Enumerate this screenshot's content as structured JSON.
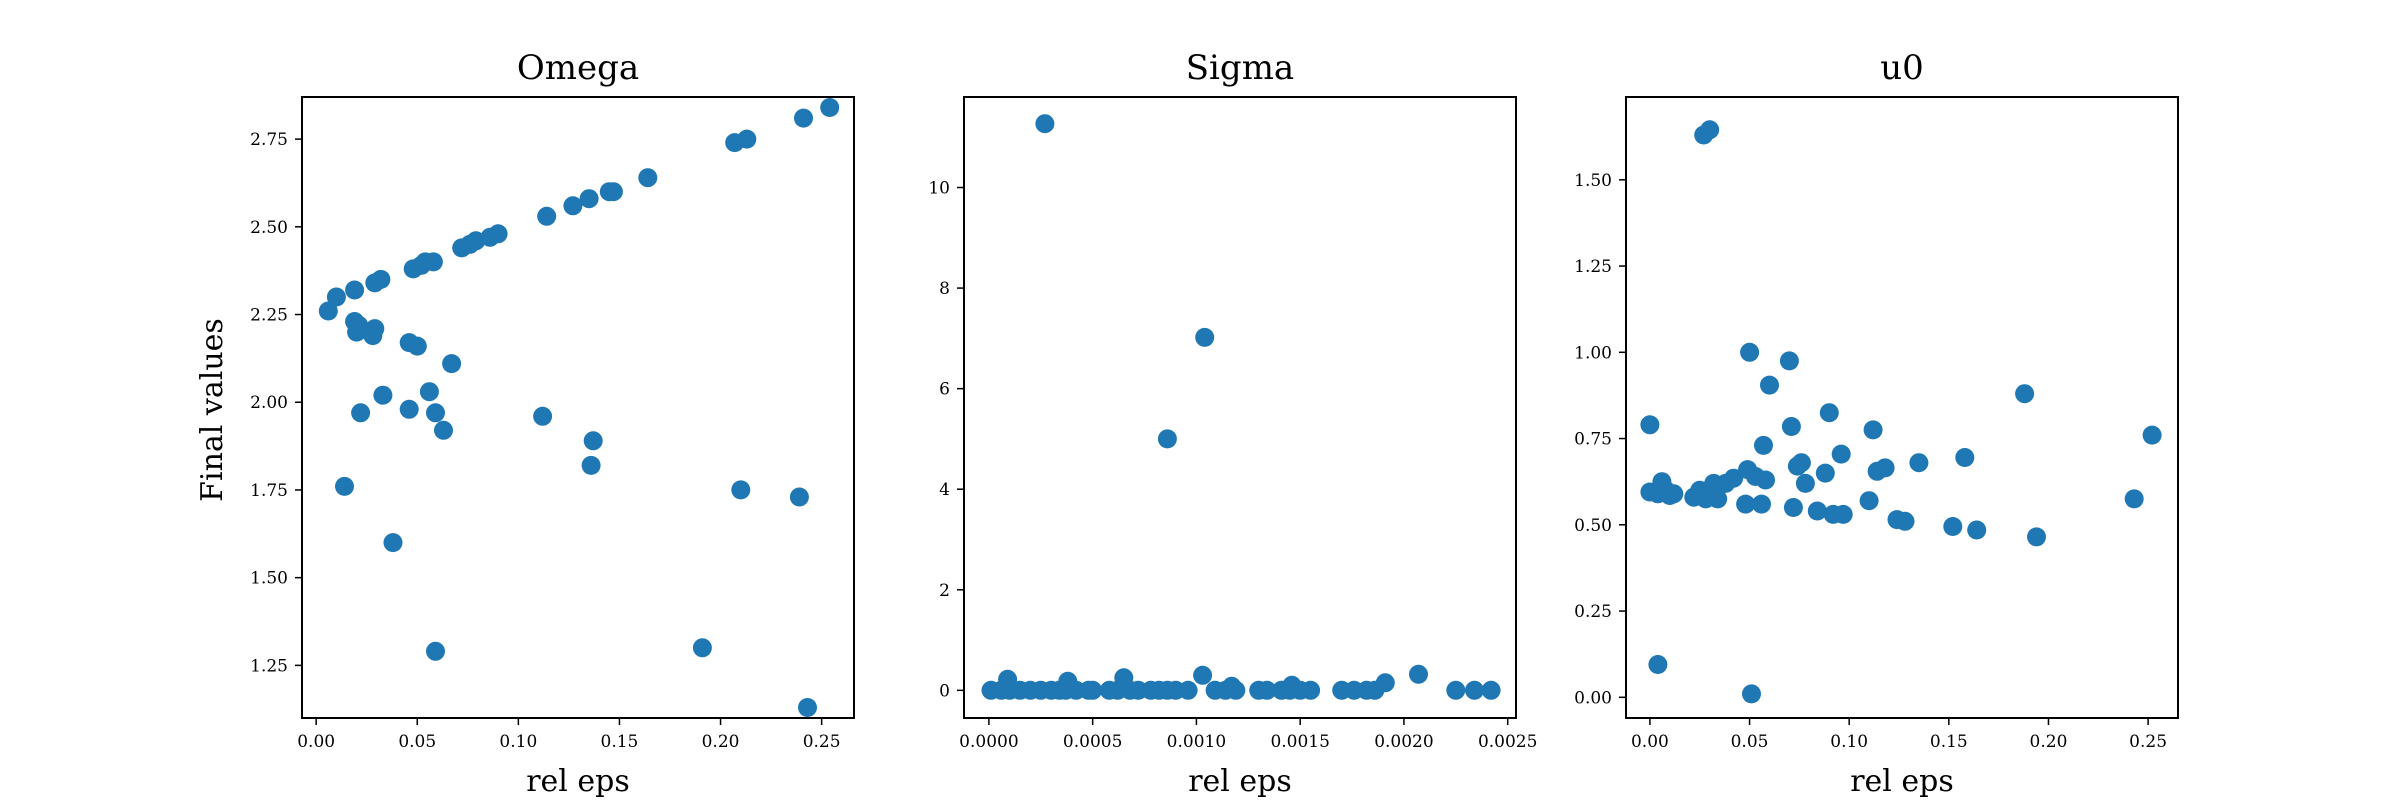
{
  "figure": {
    "ylabel": "Final values",
    "marker_color": "#1f77b4"
  },
  "chart_data": [
    {
      "type": "scatter",
      "title": "Omega",
      "xlabel": "rel eps",
      "ylabel": "Final values",
      "xlim": [
        -0.007,
        0.266
      ],
      "ylim": [
        1.1,
        2.87
      ],
      "xticks": [
        0.0,
        0.05,
        0.1,
        0.15,
        0.2,
        0.25
      ],
      "xtick_labels": [
        "0.00",
        "0.05",
        "0.10",
        "0.15",
        "0.20",
        "0.25"
      ],
      "yticks": [
        1.25,
        1.5,
        1.75,
        2.0,
        2.25,
        2.5,
        2.75
      ],
      "ytick_labels": [
        "1.25",
        "1.50",
        "1.75",
        "2.00",
        "2.25",
        "2.50",
        "2.75"
      ],
      "grid": false,
      "x": [
        0.006,
        0.01,
        0.019,
        0.029,
        0.032,
        0.048,
        0.052,
        0.054,
        0.058,
        0.072,
        0.076,
        0.079,
        0.086,
        0.09,
        0.114,
        0.127,
        0.135,
        0.145,
        0.147,
        0.164,
        0.207,
        0.213,
        0.241,
        0.254,
        0.019,
        0.02,
        0.021,
        0.028,
        0.029,
        0.046,
        0.05,
        0.022,
        0.033,
        0.046,
        0.056,
        0.059,
        0.063,
        0.067,
        0.014,
        0.038,
        0.059,
        0.112,
        0.136,
        0.137,
        0.191,
        0.21,
        0.239,
        0.243
      ],
      "y": [
        2.26,
        2.3,
        2.32,
        2.34,
        2.35,
        2.38,
        2.39,
        2.4,
        2.4,
        2.44,
        2.45,
        2.46,
        2.47,
        2.48,
        2.53,
        2.56,
        2.58,
        2.6,
        2.6,
        2.64,
        2.74,
        2.75,
        2.81,
        2.84,
        2.23,
        2.2,
        2.22,
        2.19,
        2.21,
        2.17,
        2.16,
        1.97,
        2.02,
        1.98,
        2.03,
        1.97,
        1.92,
        2.11,
        1.76,
        1.6,
        1.29,
        1.96,
        1.82,
        1.89,
        1.3,
        1.75,
        1.73,
        1.13
      ]
    },
    {
      "type": "scatter",
      "title": "Sigma",
      "xlabel": "rel eps",
      "ylabel": "",
      "xlim": [
        -0.00012,
        0.00254
      ],
      "ylim": [
        -0.55,
        11.8
      ],
      "xticks": [
        0.0,
        0.0005,
        0.001,
        0.0015,
        0.002,
        0.0025
      ],
      "xtick_labels": [
        "0.0000",
        "0.0005",
        "0.0010",
        "0.0015",
        "0.0020",
        "0.0025"
      ],
      "yticks": [
        0,
        2,
        4,
        6,
        8,
        10
      ],
      "ytick_labels": [
        "0",
        "2",
        "4",
        "6",
        "8",
        "10"
      ],
      "grid": false,
      "x": [
        1e-05,
        6e-05,
        0.0001,
        0.00015,
        0.0002,
        0.00025,
        0.0003,
        0.00034,
        0.00037,
        0.00042,
        0.00048,
        0.0005,
        0.00058,
        0.00062,
        0.00068,
        0.00072,
        0.00078,
        0.00082,
        0.00086,
        0.0009,
        0.00096,
        0.00109,
        0.00114,
        0.00119,
        0.0013,
        0.00134,
        0.00141,
        0.00145,
        0.0015,
        0.00155,
        0.0017,
        0.00176,
        0.00182,
        0.00186,
        0.00225,
        0.00234,
        0.00242,
        9e-05,
        0.00038,
        0.00065,
        0.00103,
        0.00117,
        0.00146,
        0.00191,
        0.00207,
        0.00027,
        0.00086,
        0.00104
      ],
      "y": [
        0.0,
        0.0,
        0.0,
        0.0,
        0.0,
        0.0,
        0.0,
        0.0,
        0.0,
        0.0,
        0.0,
        0.0,
        0.0,
        0.0,
        0.0,
        0.0,
        0.0,
        0.0,
        0.0,
        0.0,
        0.0,
        0.0,
        0.0,
        0.0,
        0.0,
        0.0,
        0.0,
        0.0,
        0.0,
        0.0,
        0.0,
        0.0,
        0.0,
        0.0,
        0.0,
        0.0,
        0.0,
        0.22,
        0.18,
        0.25,
        0.3,
        0.08,
        0.1,
        0.15,
        0.32,
        11.27,
        5.0,
        7.02
      ]
    },
    {
      "type": "scatter",
      "title": "u0",
      "xlabel": "rel eps",
      "ylabel": "",
      "xlim": [
        -0.012,
        0.265
      ],
      "ylim": [
        -0.06,
        1.74
      ],
      "xticks": [
        0.0,
        0.05,
        0.1,
        0.15,
        0.2,
        0.25
      ],
      "xtick_labels": [
        "0.00",
        "0.05",
        "0.10",
        "0.15",
        "0.20",
        "0.25"
      ],
      "yticks": [
        0.0,
        0.25,
        0.5,
        0.75,
        1.0,
        1.25,
        1.5
      ],
      "ytick_labels": [
        "0.00",
        "0.25",
        "0.50",
        "0.75",
        "1.00",
        "1.25",
        "1.50"
      ],
      "grid": false,
      "x": [
        0.0,
        0.0,
        0.004,
        0.006,
        0.008,
        0.01,
        0.012,
        0.022,
        0.025,
        0.028,
        0.032,
        0.034,
        0.038,
        0.042,
        0.048,
        0.05,
        0.053,
        0.056,
        0.057,
        0.058,
        0.07,
        0.071,
        0.072,
        0.074,
        0.076,
        0.078,
        0.084,
        0.088,
        0.09,
        0.092,
        0.096,
        0.097,
        0.11,
        0.112,
        0.114,
        0.118,
        0.124,
        0.128,
        0.135,
        0.152,
        0.158,
        0.164,
        0.188,
        0.194,
        0.243,
        0.252,
        0.004,
        0.051,
        0.027,
        0.03,
        0.049,
        0.06
      ],
      "y": [
        0.79,
        0.595,
        0.59,
        0.625,
        0.6,
        0.585,
        0.59,
        0.58,
        0.6,
        0.575,
        0.62,
        0.575,
        0.62,
        0.635,
        0.56,
        1.0,
        0.64,
        0.56,
        0.73,
        0.63,
        0.975,
        0.785,
        0.55,
        0.67,
        0.68,
        0.62,
        0.54,
        0.65,
        0.825,
        0.53,
        0.705,
        0.53,
        0.57,
        0.775,
        0.655,
        0.665,
        0.515,
        0.51,
        0.68,
        0.495,
        0.695,
        0.485,
        0.88,
        0.465,
        0.575,
        0.76,
        0.095,
        0.01,
        1.63,
        1.645,
        0.66,
        0.905
      ]
    }
  ]
}
